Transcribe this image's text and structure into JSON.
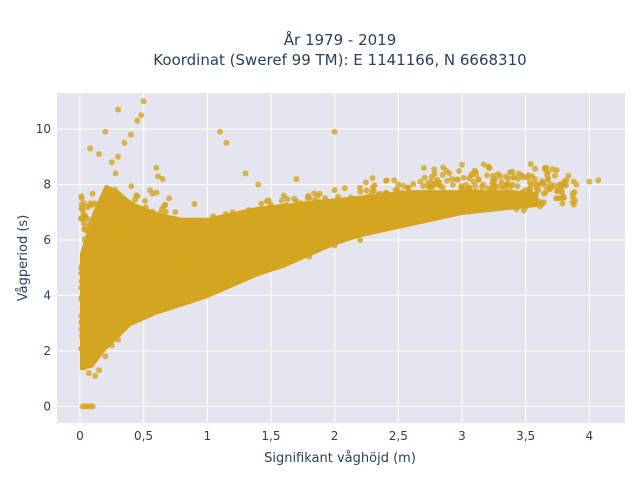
{
  "chart_data": {
    "type": "scatter",
    "title_line1": "År 1979 - 2019",
    "title_line2": "Koordinat (Sweref 99 TM): E 1141166, N 6668310",
    "xlabel": "Signifikant våghöjd (m)",
    "ylabel": "Vågperiod (s)",
    "xlim": [
      -0.18,
      4.28
    ],
    "ylim": [
      -0.6,
      11.3
    ],
    "x_ticks": [
      0,
      0.5,
      1,
      1.5,
      2,
      2.5,
      3,
      3.5,
      4
    ],
    "x_tick_labels": [
      "0",
      "0,5",
      "1",
      "1,5",
      "2",
      "2,5",
      "3",
      "3,5",
      "4"
    ],
    "y_ticks": [
      0,
      2,
      4,
      6,
      8,
      10
    ],
    "y_tick_labels": [
      "0",
      "2",
      "4",
      "6",
      "8",
      "10"
    ],
    "grid": true,
    "marker_color": "#d4a520",
    "background_color": "#e5e5ef",
    "series": [
      {
        "points": [
          [
            0.02,
            0.0
          ],
          [
            0.04,
            0.0
          ],
          [
            0.06,
            0.0
          ],
          [
            0.08,
            0.0
          ],
          [
            0.1,
            0.0
          ],
          [
            0.03,
            1.4
          ],
          [
            0.05,
            1.6
          ],
          [
            0.07,
            1.2
          ],
          [
            0.09,
            1.9
          ],
          [
            0.12,
            2.1
          ],
          [
            0.05,
            3.3
          ],
          [
            0.08,
            4.5
          ],
          [
            0.1,
            5.2
          ],
          [
            0.12,
            6.3
          ],
          [
            0.15,
            7.2
          ],
          [
            0.18,
            2.5
          ],
          [
            0.2,
            3.0
          ],
          [
            0.22,
            4.0
          ],
          [
            0.25,
            5.5
          ],
          [
            0.28,
            8.4
          ],
          [
            0.3,
            9.0
          ],
          [
            0.35,
            9.5
          ],
          [
            0.4,
            9.8
          ],
          [
            0.45,
            10.3
          ],
          [
            0.5,
            11.0
          ],
          [
            0.48,
            10.5
          ],
          [
            0.3,
            10.7
          ],
          [
            0.25,
            8.8
          ],
          [
            0.6,
            8.6
          ],
          [
            0.7,
            7.5
          ],
          [
            0.2,
            9.9
          ],
          [
            0.15,
            9.1
          ],
          [
            0.08,
            9.3
          ],
          [
            0.35,
            6.8
          ],
          [
            0.55,
            7.8
          ],
          [
            0.4,
            3.3
          ],
          [
            0.6,
            3.6
          ],
          [
            0.8,
            3.9
          ],
          [
            1.0,
            4.2
          ],
          [
            1.2,
            4.5
          ],
          [
            1.4,
            4.8
          ],
          [
            1.6,
            5.1
          ],
          [
            1.8,
            5.4
          ],
          [
            2.0,
            5.8
          ],
          [
            2.2,
            6.0
          ],
          [
            0.5,
            5.5
          ],
          [
            0.8,
            6.0
          ],
          [
            1.0,
            6.5
          ],
          [
            1.2,
            7.0
          ],
          [
            1.5,
            7.2
          ],
          [
            1.8,
            7.5
          ],
          [
            2.0,
            7.8
          ],
          [
            2.3,
            7.9
          ],
          [
            2.5,
            8.0
          ],
          [
            2.8,
            8.1
          ],
          [
            0.9,
            7.3
          ],
          [
            1.15,
            9.5
          ],
          [
            1.1,
            9.9
          ],
          [
            1.6,
            7.6
          ],
          [
            2.0,
            9.9
          ],
          [
            2.4,
            6.6
          ],
          [
            2.6,
            6.9
          ],
          [
            2.8,
            7.0
          ],
          [
            3.0,
            7.2
          ],
          [
            3.2,
            7.4
          ],
          [
            3.4,
            7.6
          ],
          [
            3.5,
            7.2
          ],
          [
            3.6,
            7.8
          ],
          [
            3.7,
            8.0
          ],
          [
            3.8,
            8.1
          ],
          [
            3.9,
            8.0
          ],
          [
            4.0,
            8.1
          ],
          [
            4.07,
            8.15
          ],
          [
            3.65,
            8.6
          ],
          [
            3.5,
            7.8
          ],
          [
            3.3,
            8.3
          ],
          [
            3.1,
            8.5
          ],
          [
            2.9,
            8.4
          ],
          [
            2.7,
            8.6
          ],
          [
            3.55,
            8.3
          ],
          [
            3.75,
            7.8
          ],
          [
            3.45,
            7.5
          ],
          [
            3.25,
            7.9
          ],
          [
            3.05,
            7.6
          ],
          [
            2.95,
            7.3
          ],
          [
            1.3,
            8.4
          ],
          [
            1.4,
            8.0
          ],
          [
            1.7,
            8.2
          ],
          [
            0.65,
            8.2
          ],
          [
            0.75,
            7.0
          ],
          [
            0.12,
            1.1
          ],
          [
            0.15,
            1.3
          ],
          [
            0.2,
            1.8
          ],
          [
            0.25,
            2.2
          ],
          [
            0.3,
            2.4
          ]
        ]
      }
    ]
  }
}
